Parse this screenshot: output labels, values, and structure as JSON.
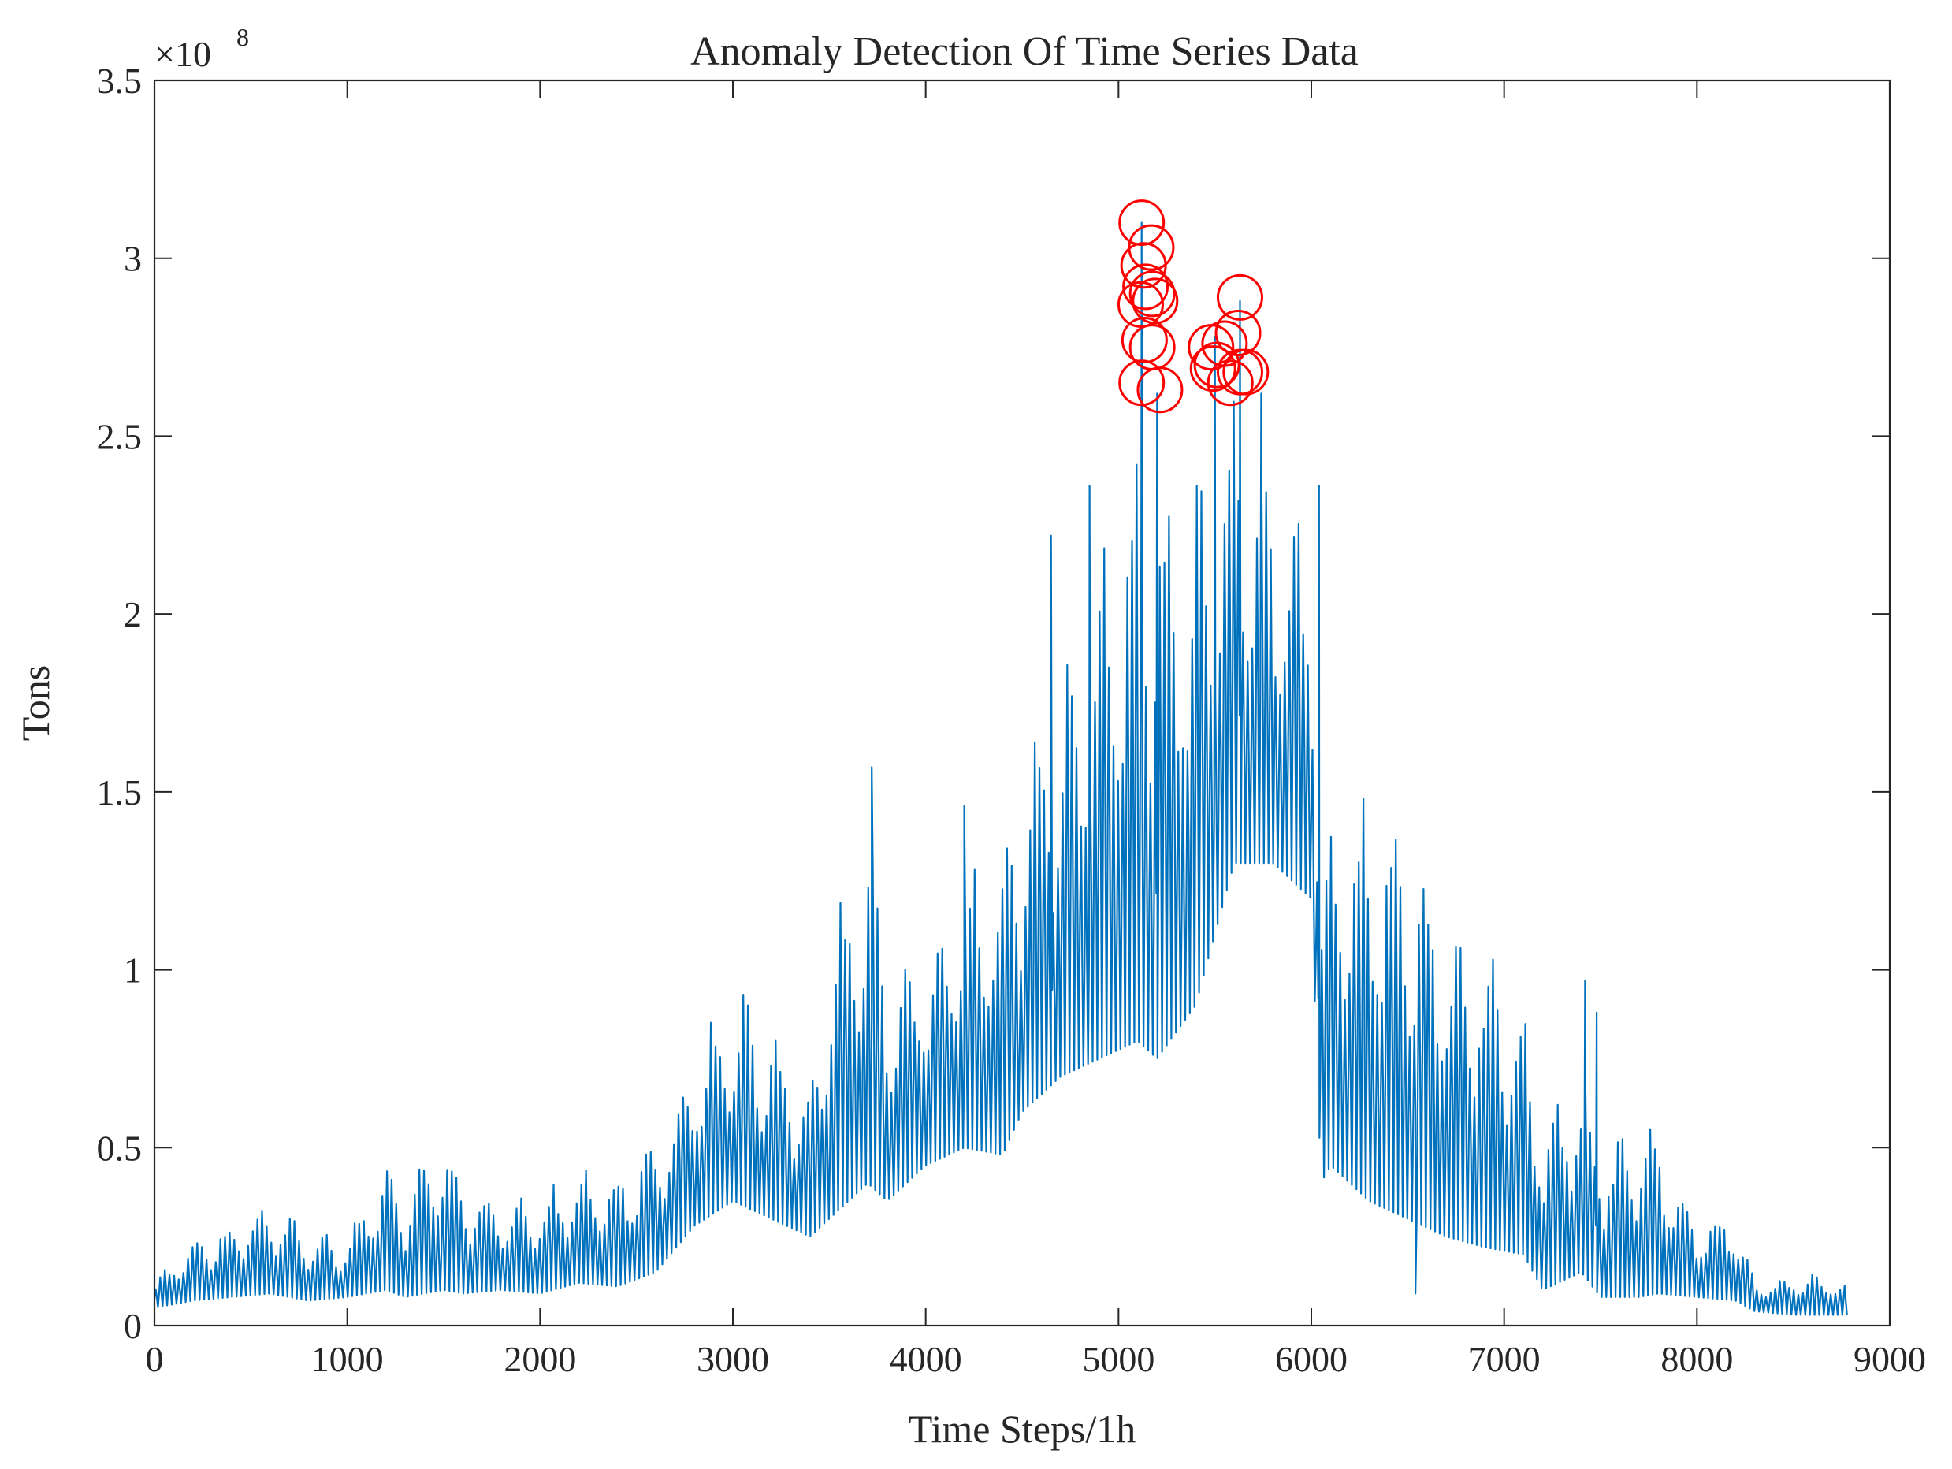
{
  "chart_data": {
    "type": "line",
    "title": "Anomaly Detection Of Time Series Data",
    "xlabel": "Time Steps/1h",
    "ylabel": "Tons",
    "xlim": [
      0,
      9000
    ],
    "ylim": [
      0,
      350000000
    ],
    "y_exponent_label": {
      "base": "×10",
      "power": "8"
    },
    "x_ticks": [
      0,
      1000,
      2000,
      3000,
      4000,
      5000,
      6000,
      7000,
      8000,
      9000
    ],
    "x_tick_labels": [
      "0",
      "1000",
      "2000",
      "3000",
      "4000",
      "5000",
      "6000",
      "7000",
      "8000",
      "9000"
    ],
    "y_ticks": [
      0,
      50000000,
      100000000,
      150000000,
      200000000,
      250000000,
      300000000,
      350000000
    ],
    "y_tick_labels": [
      "0",
      "0.5",
      "1",
      "1.5",
      "2",
      "2.5",
      "3",
      "3.5"
    ],
    "grid": false,
    "series": [
      {
        "name": "Time series",
        "color": "#0072BD",
        "envelope": {
          "x": [
            0,
            100,
            200,
            400,
            600,
            800,
            1000,
            1200,
            1300,
            1500,
            1600,
            1800,
            2000,
            2200,
            2400,
            2600,
            2800,
            3000,
            3200,
            3400,
            3500,
            3700,
            3800,
            4000,
            4200,
            4400,
            4500,
            4700,
            4900,
            5100,
            5200,
            5400,
            5600,
            5800,
            6000,
            6050,
            6100,
            6300,
            6500,
            6700,
            6900,
            7100,
            7200,
            7400,
            7500,
            7700,
            7800,
            8000,
            8200,
            8300,
            8500,
            8700,
            8780
          ],
          "low": [
            5000000,
            6000000,
            7000000,
            8000000,
            9000000,
            7000000,
            8000000,
            10000000,
            8000000,
            10000000,
            9000000,
            10000000,
            9000000,
            12000000,
            11000000,
            15000000,
            28000000,
            35000000,
            30000000,
            25000000,
            30000000,
            40000000,
            35000000,
            45000000,
            50000000,
            48000000,
            60000000,
            70000000,
            75000000,
            80000000,
            75000000,
            90000000,
            130000000,
            130000000,
            120000000,
            40000000,
            45000000,
            35000000,
            30000000,
            25000000,
            22000000,
            20000000,
            10000000,
            15000000,
            8000000,
            8000000,
            9000000,
            8000000,
            7000000,
            4000000,
            3000000,
            3000000,
            3000000
          ],
          "high": [
            12000000,
            20000000,
            25000000,
            30000000,
            35000000,
            28000000,
            25000000,
            50000000,
            40000000,
            55000000,
            45000000,
            35000000,
            38000000,
            45000000,
            45000000,
            55000000,
            80000000,
            100000000,
            85000000,
            70000000,
            110000000,
            150000000,
            100000000,
            110000000,
            130000000,
            140000000,
            160000000,
            190000000,
            220000000,
            260000000,
            250000000,
            240000000,
            270000000,
            240000000,
            230000000,
            130000000,
            150000000,
            155000000,
            145000000,
            125000000,
            115000000,
            95000000,
            60000000,
            75000000,
            55000000,
            60000000,
            55000000,
            30000000,
            35000000,
            12000000,
            15000000,
            15000000,
            12000000
          ]
        },
        "spikes": [
          {
            "x": 4650,
            "y": 222000000
          },
          {
            "x": 4850,
            "y": 236000000
          },
          {
            "x": 5120,
            "y": 310000000
          },
          {
            "x": 5200,
            "y": 262000000
          },
          {
            "x": 5500,
            "y": 278000000
          },
          {
            "x": 5630,
            "y": 288000000
          },
          {
            "x": 5740,
            "y": 262000000
          },
          {
            "x": 6040,
            "y": 236000000
          },
          {
            "x": 3720,
            "y": 157000000
          },
          {
            "x": 4200,
            "y": 146000000
          },
          {
            "x": 7420,
            "y": 97000000
          },
          {
            "x": 7480,
            "y": 88000000
          },
          {
            "x": 6540,
            "y": 9000000
          }
        ]
      }
    ],
    "anomalies": {
      "name": "Detected anomalies",
      "color": "#FF0000",
      "marker": "circle",
      "points": [
        {
          "x": 5120,
          "y": 310000000
        },
        {
          "x": 5170,
          "y": 303000000
        },
        {
          "x": 5130,
          "y": 298000000
        },
        {
          "x": 5140,
          "y": 292000000
        },
        {
          "x": 5175,
          "y": 290000000
        },
        {
          "x": 5190,
          "y": 288000000
        },
        {
          "x": 5115,
          "y": 287000000
        },
        {
          "x": 5135,
          "y": 277000000
        },
        {
          "x": 5175,
          "y": 275000000
        },
        {
          "x": 5120,
          "y": 265000000
        },
        {
          "x": 5215,
          "y": 263000000
        },
        {
          "x": 5630,
          "y": 289000000
        },
        {
          "x": 5620,
          "y": 279000000
        },
        {
          "x": 5550,
          "y": 276000000
        },
        {
          "x": 5480,
          "y": 275000000
        },
        {
          "x": 5510,
          "y": 270000000
        },
        {
          "x": 5490,
          "y": 269000000
        },
        {
          "x": 5660,
          "y": 268000000
        },
        {
          "x": 5630,
          "y": 268000000
        },
        {
          "x": 5580,
          "y": 265000000
        }
      ]
    }
  }
}
